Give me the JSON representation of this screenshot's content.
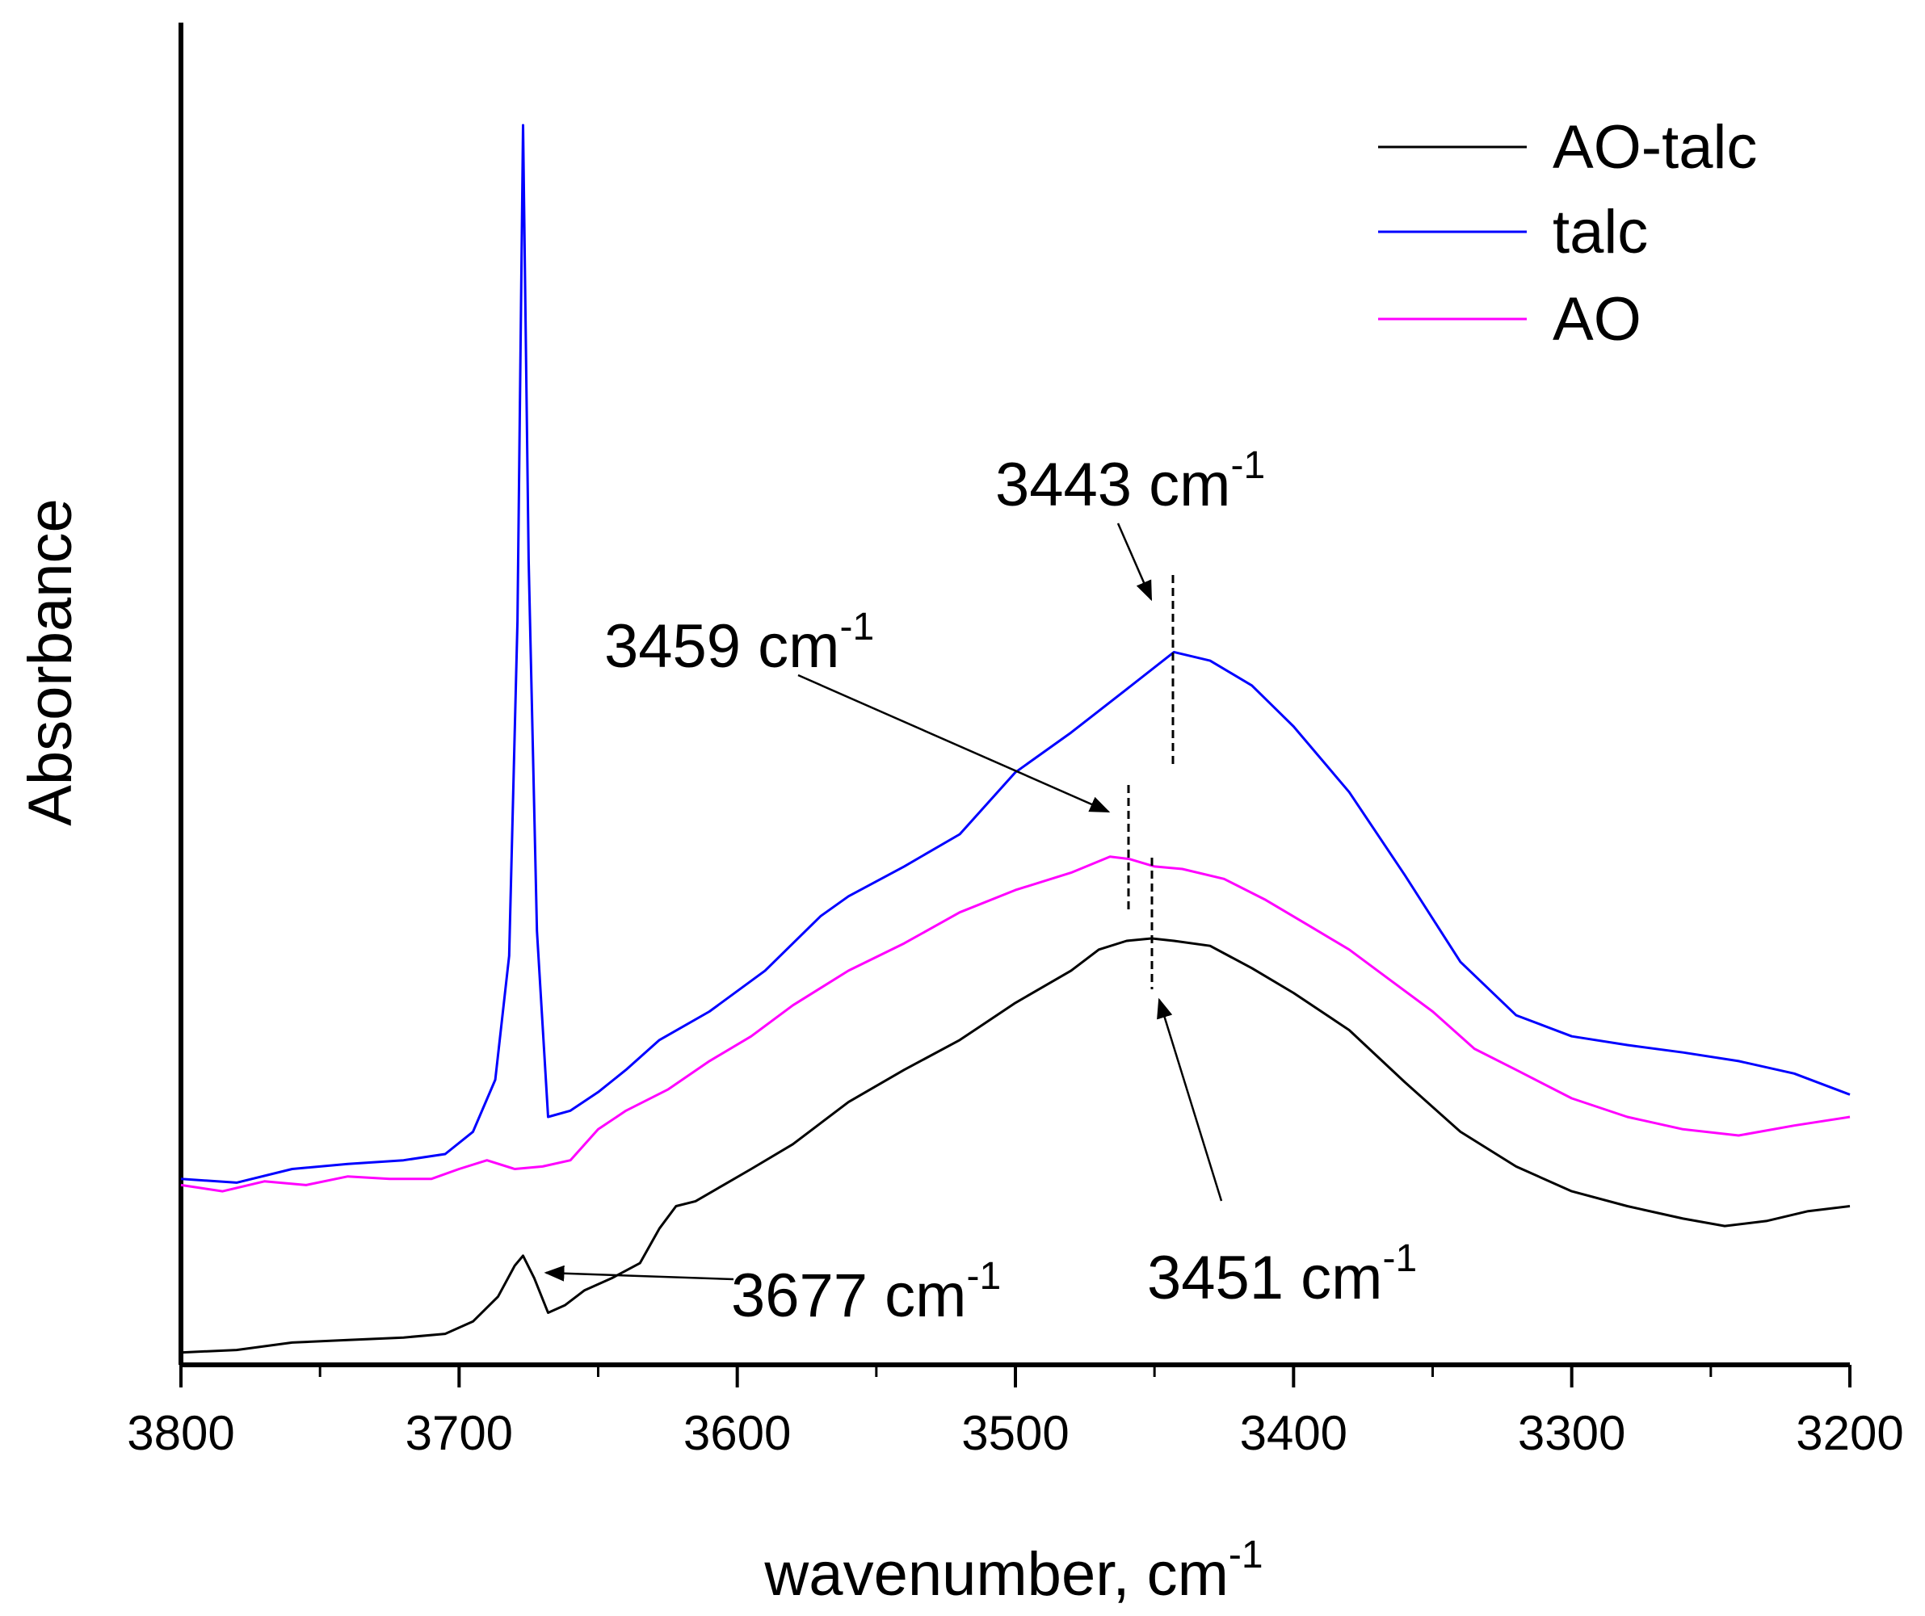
{
  "chart_data": {
    "type": "line",
    "title": "",
    "xlabel": "wavenumber, cm",
    "xlabel_sup": "-1",
    "ylabel": "Absorbance",
    "xlim": [
      3800,
      3200
    ],
    "ylim": [
      0,
      1
    ],
    "x_ticks": [
      3800,
      3700,
      3600,
      3500,
      3400,
      3300,
      3200
    ],
    "x_tick_labels": [
      "3800",
      "3700",
      "3600",
      "3500",
      "3400",
      "3300",
      "3200"
    ],
    "grid": false,
    "legend_position": "top-right",
    "series": [
      {
        "name": "AO-talc",
        "color": "#000000",
        "points": [
          [
            3800,
            0.01
          ],
          [
            3780,
            0.012
          ],
          [
            3760,
            0.018
          ],
          [
            3740,
            0.02
          ],
          [
            3720,
            0.022
          ],
          [
            3705,
            0.025
          ],
          [
            3695,
            0.035
          ],
          [
            3686,
            0.055
          ],
          [
            3680,
            0.08
          ],
          [
            3677,
            0.088
          ],
          [
            3673,
            0.07
          ],
          [
            3668,
            0.042
          ],
          [
            3662,
            0.048
          ],
          [
            3655,
            0.06
          ],
          [
            3645,
            0.07
          ],
          [
            3635,
            0.082
          ],
          [
            3628,
            0.11
          ],
          [
            3622,
            0.128
          ],
          [
            3615,
            0.132
          ],
          [
            3605,
            0.145
          ],
          [
            3595,
            0.158
          ],
          [
            3580,
            0.178
          ],
          [
            3560,
            0.212
          ],
          [
            3540,
            0.238
          ],
          [
            3520,
            0.262
          ],
          [
            3500,
            0.292
          ],
          [
            3480,
            0.318
          ],
          [
            3470,
            0.335
          ],
          [
            3460,
            0.342
          ],
          [
            3451,
            0.344
          ],
          [
            3443,
            0.342
          ],
          [
            3430,
            0.338
          ],
          [
            3415,
            0.32
          ],
          [
            3400,
            0.3
          ],
          [
            3380,
            0.27
          ],
          [
            3360,
            0.228
          ],
          [
            3340,
            0.188
          ],
          [
            3320,
            0.16
          ],
          [
            3300,
            0.14
          ],
          [
            3280,
            0.128
          ],
          [
            3260,
            0.118
          ],
          [
            3245,
            0.112
          ],
          [
            3230,
            0.116
          ],
          [
            3215,
            0.124
          ],
          [
            3200,
            0.128
          ]
        ]
      },
      {
        "name": "talc",
        "color": "#0000ff",
        "points": [
          [
            3800,
            0.15
          ],
          [
            3780,
            0.147
          ],
          [
            3760,
            0.158
          ],
          [
            3740,
            0.162
          ],
          [
            3720,
            0.165
          ],
          [
            3705,
            0.17
          ],
          [
            3695,
            0.188
          ],
          [
            3687,
            0.23
          ],
          [
            3682,
            0.33
          ],
          [
            3679,
            0.6
          ],
          [
            3677,
            1.0
          ],
          [
            3675,
            0.65
          ],
          [
            3672,
            0.35
          ],
          [
            3668,
            0.2
          ],
          [
            3660,
            0.205
          ],
          [
            3650,
            0.22
          ],
          [
            3640,
            0.238
          ],
          [
            3628,
            0.262
          ],
          [
            3610,
            0.285
          ],
          [
            3590,
            0.318
          ],
          [
            3570,
            0.362
          ],
          [
            3560,
            0.378
          ],
          [
            3540,
            0.402
          ],
          [
            3520,
            0.428
          ],
          [
            3500,
            0.478
          ],
          [
            3480,
            0.51
          ],
          [
            3460,
            0.545
          ],
          [
            3443,
            0.575
          ],
          [
            3430,
            0.568
          ],
          [
            3415,
            0.548
          ],
          [
            3400,
            0.515
          ],
          [
            3380,
            0.462
          ],
          [
            3360,
            0.395
          ],
          [
            3340,
            0.325
          ],
          [
            3320,
            0.282
          ],
          [
            3300,
            0.265
          ],
          [
            3280,
            0.258
          ],
          [
            3260,
            0.252
          ],
          [
            3240,
            0.245
          ],
          [
            3220,
            0.235
          ],
          [
            3200,
            0.218
          ]
        ]
      },
      {
        "name": "AO",
        "color": "#ff00ff",
        "points": [
          [
            3800,
            0.145
          ],
          [
            3785,
            0.14
          ],
          [
            3770,
            0.148
          ],
          [
            3755,
            0.145
          ],
          [
            3740,
            0.152
          ],
          [
            3725,
            0.15
          ],
          [
            3710,
            0.15
          ],
          [
            3700,
            0.158
          ],
          [
            3690,
            0.165
          ],
          [
            3680,
            0.158
          ],
          [
            3670,
            0.16
          ],
          [
            3660,
            0.165
          ],
          [
            3650,
            0.19
          ],
          [
            3640,
            0.205
          ],
          [
            3625,
            0.222
          ],
          [
            3610,
            0.245
          ],
          [
            3595,
            0.265
          ],
          [
            3580,
            0.29
          ],
          [
            3560,
            0.318
          ],
          [
            3540,
            0.34
          ],
          [
            3520,
            0.365
          ],
          [
            3500,
            0.383
          ],
          [
            3480,
            0.397
          ],
          [
            3466,
            0.41
          ],
          [
            3459,
            0.408
          ],
          [
            3450,
            0.402
          ],
          [
            3440,
            0.4
          ],
          [
            3425,
            0.392
          ],
          [
            3410,
            0.375
          ],
          [
            3395,
            0.355
          ],
          [
            3380,
            0.335
          ],
          [
            3365,
            0.31
          ],
          [
            3350,
            0.285
          ],
          [
            3335,
            0.255
          ],
          [
            3320,
            0.238
          ],
          [
            3300,
            0.215
          ],
          [
            3280,
            0.2
          ],
          [
            3260,
            0.19
          ],
          [
            3240,
            0.185
          ],
          [
            3220,
            0.193
          ],
          [
            3200,
            0.2
          ]
        ]
      }
    ],
    "annotations": [
      {
        "text": "3443 cm",
        "sup": "-1",
        "x": 3443
      },
      {
        "text": "3459 cm",
        "sup": "-1",
        "x": 3459
      },
      {
        "text": "3451 cm",
        "sup": "-1",
        "x": 3451
      },
      {
        "text": "3677 cm",
        "sup": "-1",
        "x": 3677
      }
    ]
  }
}
